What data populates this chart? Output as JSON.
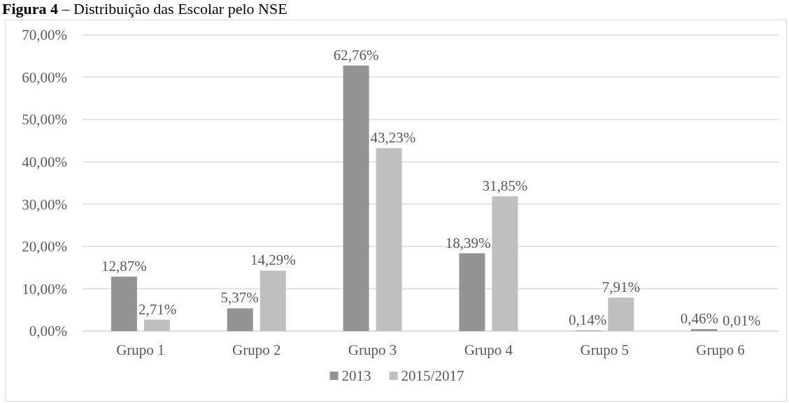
{
  "chart_data": {
    "type": "bar",
    "title": "Figura 4 – Distribuição das Escolar pelo NSE",
    "categories": [
      "Grupo 1",
      "Grupo 2",
      "Grupo 3",
      "Grupo 4",
      "Grupo 5",
      "Grupo 6"
    ],
    "series": [
      {
        "name": "2013",
        "color": "#939393",
        "values": [
          12.87,
          5.37,
          62.76,
          18.39,
          0.14,
          0.46
        ],
        "value_labels": [
          "12,87%",
          "5,37%",
          "62,76%",
          "18,39%",
          "0,14%",
          "0,46%"
        ]
      },
      {
        "name": "2015/2017",
        "color": "#bfbfbf",
        "values": [
          2.71,
          14.29,
          43.23,
          31.85,
          7.91,
          0.01
        ],
        "value_labels": [
          "2,71%",
          "14,29%",
          "43,23%",
          "31,85%",
          "7,91%",
          "0,01%"
        ]
      }
    ],
    "ylim": [
      0,
      70
    ],
    "yticks": [
      {
        "value": 0,
        "label": "0,00%"
      },
      {
        "value": 10,
        "label": "10,00%"
      },
      {
        "value": 20,
        "label": "20,00%"
      },
      {
        "value": 30,
        "label": "30,00%"
      },
      {
        "value": 40,
        "label": "40,00%"
      },
      {
        "value": 50,
        "label": "50,00%"
      },
      {
        "value": 60,
        "label": "60,00%"
      },
      {
        "value": 70,
        "label": "70,00%"
      }
    ],
    "grid": "y",
    "legend": "bottom"
  }
}
